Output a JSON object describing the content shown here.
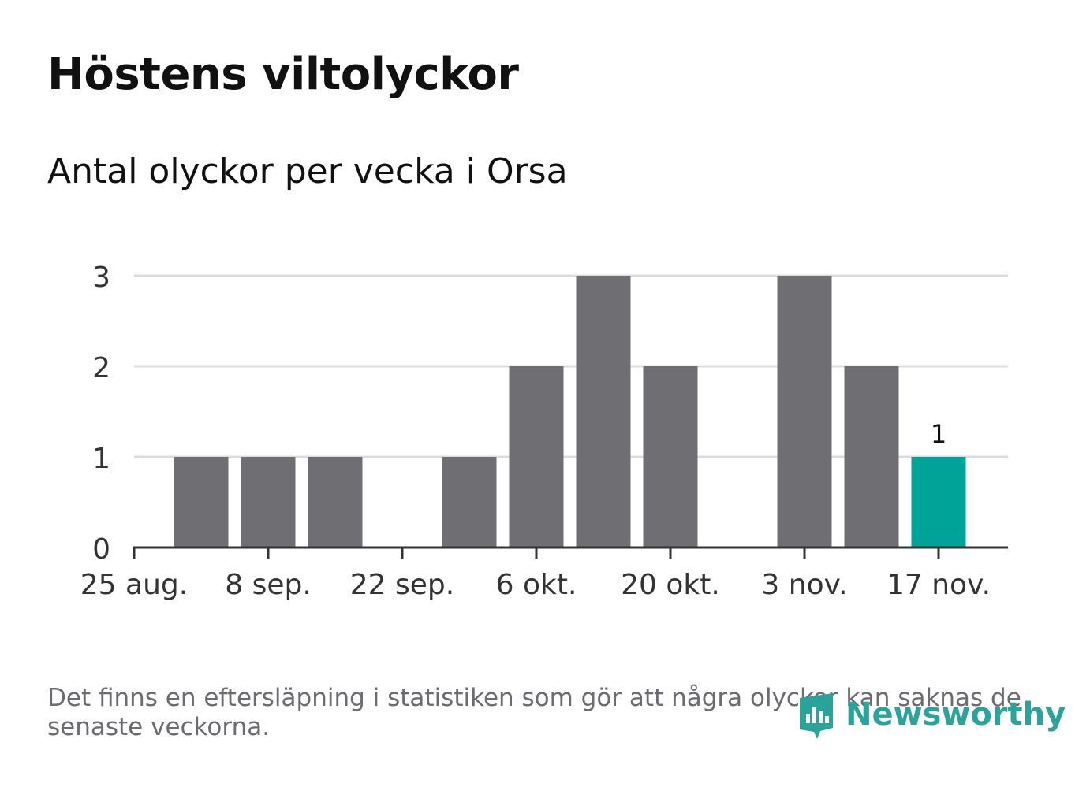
{
  "title": "Höstens viltolyckor",
  "subtitle": "Antal olyckor per vecka i Orsa",
  "footnote": "Det finns en eftersläpning i statistiken som gör att några olyckor kan saknas de senaste veckorna.",
  "logo": {
    "text": "Newsworthy",
    "icon": "newsworthy-logo-icon"
  },
  "colors": {
    "bar": "#6f6e73",
    "highlight": "#00a398",
    "grid": "#dcdcdc",
    "axis": "#333333",
    "text": "#333333"
  },
  "chart_data": {
    "type": "bar",
    "title": "Höstens viltolyckor",
    "subtitle": "Antal olyckor per vecka i Orsa",
    "x": [
      "2019-08-26",
      "2019-09-02",
      "2019-09-09",
      "2019-09-16",
      "2019-09-23",
      "2019-09-30",
      "2019-10-07",
      "2019-10-14",
      "2019-10-21",
      "2019-10-28",
      "2019-11-04",
      "2019-11-11"
    ],
    "values": [
      1,
      1,
      1,
      0,
      1,
      2,
      3,
      2,
      0,
      3,
      2,
      1
    ],
    "highlight_index": 11,
    "data_labels": [
      {
        "index": 11,
        "text": "1"
      }
    ],
    "xticks": [
      "25 aug.",
      "8 sep.",
      "22 sep.",
      "6 okt.",
      "20 okt.",
      "3 nov.",
      "17 nov."
    ],
    "yticks": [
      "0",
      "1",
      "2",
      "3"
    ],
    "ylim": [
      0,
      3
    ],
    "grid": true,
    "legend": "none"
  }
}
